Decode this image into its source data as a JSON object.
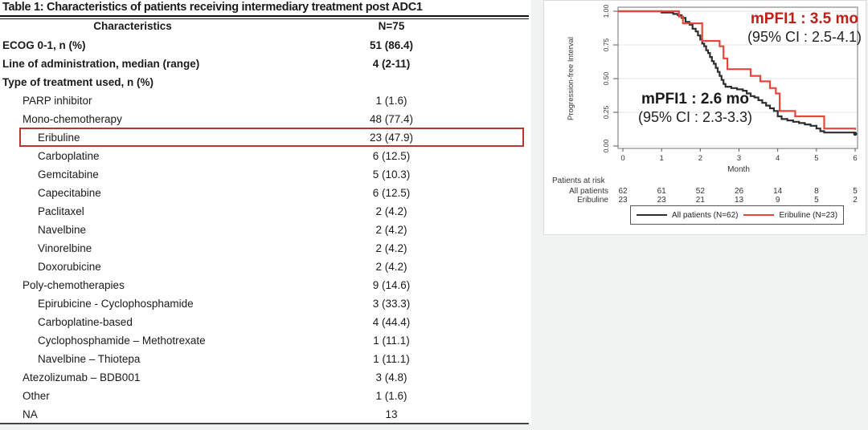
{
  "table": {
    "title": "Table 1: Characteristics of patients receiving intermediary treatment post ADC1",
    "header": {
      "characteristics": "Characteristics",
      "n": "N=75"
    },
    "highlight_color": "#b03a2e",
    "rows": [
      {
        "label": "ECOG 0-1, n (%)",
        "value": "51 (86.4)",
        "indent": 0,
        "bold": true
      },
      {
        "label": "Line of administration, median (range)",
        "value": "4 (2-11)",
        "indent": 0,
        "bold": true
      },
      {
        "label": "Type of treatment used, n (%)",
        "value": "",
        "indent": 0,
        "bold": true
      },
      {
        "label": "PARP inhibitor",
        "value": "1 (1.6)",
        "indent": 1,
        "bold": false
      },
      {
        "label": "Mono-chemotherapy",
        "value": "48 (77.4)",
        "indent": 1,
        "bold": false
      },
      {
        "label": "Eribuline",
        "value": "23 (47.9)",
        "indent": 2,
        "bold": false,
        "highlight": true
      },
      {
        "label": "Carboplatine",
        "value": "6 (12.5)",
        "indent": 2,
        "bold": false
      },
      {
        "label": "Gemcitabine",
        "value": "5 (10.3)",
        "indent": 2,
        "bold": false
      },
      {
        "label": "Capecitabine",
        "value": "6 (12.5)",
        "indent": 2,
        "bold": false
      },
      {
        "label": "Paclitaxel",
        "value": "2 (4.2)",
        "indent": 2,
        "bold": false
      },
      {
        "label": "Navelbine",
        "value": "2 (4.2)",
        "indent": 2,
        "bold": false
      },
      {
        "label": "Vinorelbine",
        "value": "2 (4.2)",
        "indent": 2,
        "bold": false
      },
      {
        "label": "Doxorubicine",
        "value": "2 (4.2)",
        "indent": 2,
        "bold": false
      },
      {
        "label": "Poly-chemotherapies",
        "value": "9 (14.6)",
        "indent": 1,
        "bold": false
      },
      {
        "label": "Epirubicine - Cyclophosphamide",
        "value": "3 (33.3)",
        "indent": 2,
        "bold": false
      },
      {
        "label": "Carboplatine-based",
        "value": "4 (44.4)",
        "indent": 2,
        "bold": false
      },
      {
        "label": "Cyclophosphamide – Methotrexate",
        "value": "1 (11.1)",
        "indent": 2,
        "bold": false
      },
      {
        "label": "Navelbine – Thiotepa",
        "value": "1 (11.1)",
        "indent": 2,
        "bold": false
      },
      {
        "label": "Atezolizumab – BDB001",
        "value": "3 (4.8)",
        "indent": 1,
        "bold": false
      },
      {
        "label": "Other",
        "value": "1 (1.6)",
        "indent": 1,
        "bold": false
      },
      {
        "label": "NA",
        "value": "13",
        "indent": 1,
        "bold": false
      }
    ]
  },
  "chart_data": {
    "type": "line",
    "subtype": "kaplan-meier-step",
    "xlabel": "Month",
    "ylabel": "Progression-free Interval",
    "xlim": [
      0,
      6
    ],
    "ylim": [
      0.0,
      1.0
    ],
    "xticks": [
      0,
      1,
      2,
      3,
      4,
      5,
      6
    ],
    "yticks": [
      {
        "label": "0.00",
        "value": 0.0
      },
      {
        "label": "0.25",
        "value": 0.25
      },
      {
        "label": "0.50",
        "value": 0.5
      },
      {
        "label": "0.75",
        "value": 0.75
      },
      {
        "label": "1.00",
        "value": 1.0
      }
    ],
    "grid": true,
    "series": [
      {
        "name": "All patients (N=62)",
        "color": "#2e2e2e",
        "steps": [
          [
            0,
            1.0
          ],
          [
            1.0,
            0.99
          ],
          [
            1.3,
            0.98
          ],
          [
            1.42,
            0.97
          ],
          [
            1.52,
            0.95
          ],
          [
            1.62,
            0.92
          ],
          [
            1.72,
            0.9
          ],
          [
            1.8,
            0.87
          ],
          [
            1.88,
            0.85
          ],
          [
            1.94,
            0.82
          ],
          [
            2.0,
            0.79
          ],
          [
            2.05,
            0.76
          ],
          [
            2.1,
            0.74
          ],
          [
            2.15,
            0.71
          ],
          [
            2.2,
            0.69
          ],
          [
            2.25,
            0.66
          ],
          [
            2.3,
            0.63
          ],
          [
            2.35,
            0.61
          ],
          [
            2.4,
            0.58
          ],
          [
            2.45,
            0.55
          ],
          [
            2.5,
            0.52
          ],
          [
            2.55,
            0.49
          ],
          [
            2.6,
            0.46
          ],
          [
            2.65,
            0.44
          ],
          [
            2.8,
            0.43
          ],
          [
            2.95,
            0.42
          ],
          [
            3.1,
            0.41
          ],
          [
            3.2,
            0.39
          ],
          [
            3.3,
            0.37
          ],
          [
            3.4,
            0.36
          ],
          [
            3.5,
            0.34
          ],
          [
            3.6,
            0.32
          ],
          [
            3.7,
            0.3
          ],
          [
            3.8,
            0.28
          ],
          [
            3.9,
            0.26
          ],
          [
            4.0,
            0.22
          ],
          [
            4.1,
            0.2
          ],
          [
            4.25,
            0.19
          ],
          [
            4.4,
            0.18
          ],
          [
            4.55,
            0.17
          ],
          [
            4.7,
            0.16
          ],
          [
            4.85,
            0.15
          ],
          [
            5.0,
            0.13
          ],
          [
            5.1,
            0.11
          ],
          [
            5.2,
            0.1
          ],
          [
            6.0,
            0.09
          ]
        ]
      },
      {
        "name": "Eribuline (N=23)",
        "color": "#e8453c",
        "steps": [
          [
            0,
            1.0
          ],
          [
            1.45,
            0.96
          ],
          [
            1.55,
            0.91
          ],
          [
            2.05,
            0.78
          ],
          [
            2.5,
            0.74
          ],
          [
            2.6,
            0.65
          ],
          [
            2.7,
            0.57
          ],
          [
            3.3,
            0.52
          ],
          [
            3.55,
            0.48
          ],
          [
            3.8,
            0.43
          ],
          [
            3.95,
            0.39
          ],
          [
            4.05,
            0.26
          ],
          [
            4.45,
            0.22
          ],
          [
            5.2,
            0.13
          ],
          [
            6.0,
            0.12
          ]
        ]
      }
    ],
    "annotations": {
      "eribuline": {
        "line1": "mPFI1 : 3.5 mo",
        "line2": "(95% CI : 2.5-4.1)",
        "median_months": 3.5,
        "ci": "2.5-4.1",
        "color": "#c11e18"
      },
      "all_patients": {
        "line1": "mPFI1 : 2.6 mo",
        "line2": "(95% CI : 2.3-3.3)",
        "median_months": 2.6,
        "ci": "2.3-3.3",
        "color": "#1a1a1a"
      }
    },
    "risk_table": {
      "title": "Patients at risk",
      "rows": [
        {
          "label": "All patients",
          "counts": [
            62,
            61,
            52,
            26,
            14,
            8,
            5
          ]
        },
        {
          "label": "Eribuline",
          "counts": [
            23,
            23,
            21,
            13,
            9,
            5,
            2
          ]
        }
      ]
    },
    "legend": [
      {
        "label": "All patients (N=62)",
        "color": "#2e2e2e"
      },
      {
        "label": "Eribuline (N=23)",
        "color": "#e8453c"
      }
    ],
    "legend_position": "bottom"
  }
}
